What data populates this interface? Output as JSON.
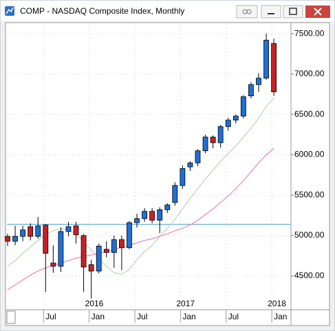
{
  "chart_data": {
    "type": "candlestick",
    "title": "COMP - NASDAQ Composite Index, Monthly",
    "categories": [
      null,
      null,
      null,
      null,
      null,
      "Jul",
      null,
      null,
      null,
      null,
      null,
      "Jan",
      null,
      null,
      null,
      null,
      null,
      "Jul",
      null,
      null,
      null,
      null,
      null,
      "Jan",
      null,
      null,
      null,
      null,
      null,
      "Jul",
      null,
      null,
      null,
      null,
      null,
      "Jan"
    ],
    "year_labels": [
      {
        "category_index": 11,
        "label": "2016"
      },
      {
        "category_index": 23,
        "label": "2017"
      },
      {
        "category_index": 35,
        "label": "2018"
      }
    ],
    "open": [
      4990,
      4930,
      4990,
      5110,
      4990,
      5130,
      4660,
      4620,
      5050,
      5120,
      5000,
      4640,
      4560,
      4830,
      4790,
      4950,
      4850,
      5160,
      5210,
      5300,
      5190,
      5320,
      5410,
      5620,
      5850,
      5900,
      6050,
      6220,
      6150,
      6350,
      6430,
      6480,
      6730,
      6870,
      6950,
      7380
    ],
    "high": [
      5020,
      5120,
      5120,
      5150,
      5230,
      5140,
      4880,
      5100,
      5170,
      5170,
      5020,
      4700,
      4900,
      4930,
      5000,
      5000,
      5180,
      5270,
      5340,
      5340,
      5350,
      5400,
      5660,
      5870,
      5920,
      6070,
      6250,
      6240,
      6370,
      6460,
      6500,
      6740,
      6900,
      7010,
      7500,
      7440
    ],
    "low": [
      4870,
      4880,
      4930,
      4940,
      4960,
      4300,
      4540,
      4550,
      4990,
      4900,
      4300,
      4220,
      4530,
      4730,
      4600,
      4570,
      4830,
      5100,
      5170,
      5150,
      5030,
      5280,
      5370,
      5580,
      5800,
      5860,
      6020,
      6080,
      6090,
      6300,
      6390,
      6450,
      6700,
      6780,
      6930,
      6730
    ],
    "close": [
      4930,
      4990,
      5070,
      4990,
      5120,
      4780,
      4620,
      5050,
      5110,
      5010,
      4610,
      4560,
      4870,
      4790,
      4950,
      4850,
      5160,
      5210,
      5300,
      5190,
      5320,
      5380,
      5620,
      5830,
      5900,
      6050,
      6220,
      6150,
      6350,
      6430,
      6480,
      6720,
      6870,
      6950,
      7420,
      6780
    ],
    "up_color": "#1f6fd6",
    "down_color": "#cc1f24",
    "overlays": [
      {
        "color": "#b9dcb7",
        "values": [
          4620,
          4690,
          4780,
          4860,
          4940,
          5010,
          5060,
          5090,
          5070,
          5020,
          4920,
          4820,
          4720,
          4620,
          4540,
          4520,
          4580,
          4700,
          4800,
          4880,
          4990,
          5090,
          5200,
          5330,
          5460,
          5580,
          5700,
          5810,
          5920,
          6020,
          6110,
          6220,
          6330,
          6450,
          6600,
          6700
        ]
      },
      {
        "color": "#f08cb4",
        "values": [
          4330,
          4390,
          4450,
          4510,
          4560,
          4600,
          4630,
          4660,
          4690,
          4720,
          4740,
          4760,
          4780,
          4800,
          4830,
          4850,
          4880,
          4910,
          4940,
          4960,
          4990,
          5020,
          5060,
          5090,
          5130,
          5190,
          5260,
          5330,
          5410,
          5490,
          5580,
          5680,
          5790,
          5900,
          6000,
          6080
        ]
      }
    ],
    "hline": {
      "value": 5138,
      "color": "#3a9ad9"
    },
    "ylim": [
      4090,
      7620
    ],
    "yticks": [
      {
        "value": 4500,
        "label": "4500.00"
      },
      {
        "value": 5000,
        "label": "5000.00"
      },
      {
        "value": 5500,
        "label": "5500.00"
      },
      {
        "value": 6000,
        "label": "6000.00"
      },
      {
        "value": 6500,
        "label": "6500.00"
      },
      {
        "value": 7000,
        "label": "7000.00"
      },
      {
        "value": 7500,
        "label": "7500.00"
      }
    ],
    "grid": true
  }
}
